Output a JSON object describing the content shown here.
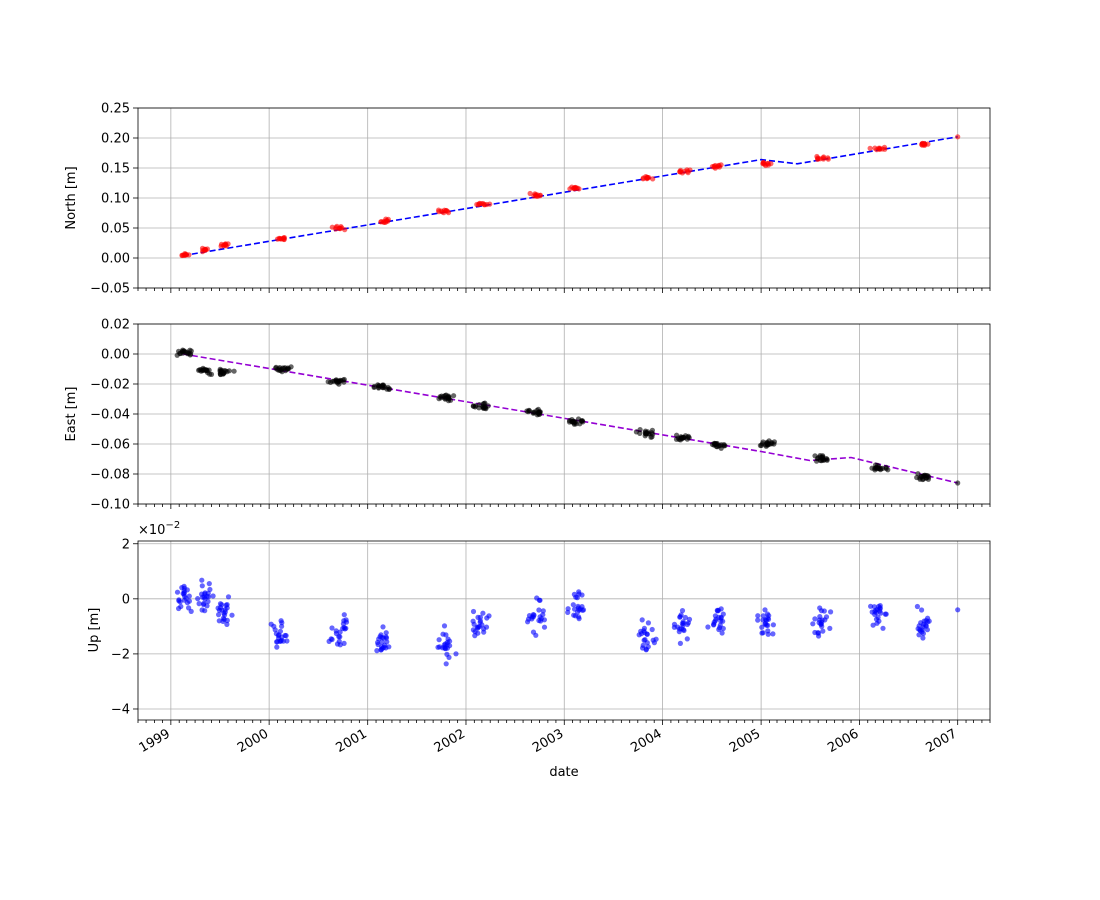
{
  "figure": {
    "xlabel": "date",
    "x_tick_labels": [
      "1999",
      "2000",
      "2001",
      "2002",
      "2003",
      "2004",
      "2005",
      "2006",
      "2007"
    ]
  },
  "chart_data": [
    {
      "type": "scatter",
      "panel": "north",
      "ylabel": "North [m]",
      "xlabel": "",
      "xlim": [
        "1998-09-01",
        "2007-05-01"
      ],
      "ylim": [
        -0.05,
        0.25
      ],
      "yticks": [
        -0.05,
        0.0,
        0.05,
        0.1,
        0.15,
        0.2,
        0.25
      ],
      "ytick_labels": [
        "−0.05",
        "0.00",
        "0.05",
        "0.10",
        "0.15",
        "0.20",
        "0.25"
      ],
      "grid": true,
      "colors": {
        "points": "#ff0000",
        "trend": "#0000ff"
      },
      "trend": {
        "style": "dashed",
        "x": [
          "1999-02-15",
          "2005-01-01",
          "2005-05-15",
          "2007-01-01"
        ],
        "y": [
          0.004,
          0.164,
          0.157,
          0.202
        ]
      },
      "clusters": [
        {
          "x": "1999-02-20",
          "y": 0.005
        },
        {
          "x": "1999-05-10",
          "y": 0.013
        },
        {
          "x": "1999-07-20",
          "y": 0.022
        },
        {
          "x": "2000-02-15",
          "y": 0.032
        },
        {
          "x": "2000-09-15",
          "y": 0.05
        },
        {
          "x": "2001-02-25",
          "y": 0.062
        },
        {
          "x": "2001-10-20",
          "y": 0.078
        },
        {
          "x": "2002-02-25",
          "y": 0.09
        },
        {
          "x": "2002-09-20",
          "y": 0.105
        },
        {
          "x": "2003-02-15",
          "y": 0.115
        },
        {
          "x": "2003-11-01",
          "y": 0.133
        },
        {
          "x": "2004-03-15",
          "y": 0.145
        },
        {
          "x": "2004-07-25",
          "y": 0.153
        },
        {
          "x": "2005-01-20",
          "y": 0.158
        },
        {
          "x": "2005-08-10",
          "y": 0.167
        },
        {
          "x": "2006-03-10",
          "y": 0.182
        },
        {
          "x": "2006-08-25",
          "y": 0.19
        },
        {
          "x": "2007-01-01",
          "y": 0.202
        }
      ]
    },
    {
      "type": "scatter",
      "panel": "east",
      "ylabel": "East [m]",
      "xlabel": "",
      "xlim": [
        "1998-09-01",
        "2007-05-01"
      ],
      "ylim": [
        -0.1,
        0.02
      ],
      "yticks": [
        -0.1,
        -0.08,
        -0.06,
        -0.04,
        -0.02,
        0.0,
        0.02
      ],
      "ytick_labels": [
        "−0.10",
        "−0.08",
        "−0.06",
        "−0.04",
        "−0.02",
        "0.00",
        "0.02"
      ],
      "grid": true,
      "colors": {
        "points": "#000000",
        "trend": "#9400d3"
      },
      "trend": {
        "style": "dashed",
        "x": [
          "1999-02-15",
          "2005-01-01",
          "2005-07-01",
          "2005-12-01",
          "2007-01-01"
        ],
        "y": [
          0.0,
          -0.065,
          -0.071,
          -0.069,
          -0.086
        ]
      },
      "clusters": [
        {
          "x": "1999-02-20",
          "y": 0.001
        },
        {
          "x": "1999-05-10",
          "y": -0.011
        },
        {
          "x": "1999-07-20",
          "y": -0.012
        },
        {
          "x": "2000-02-15",
          "y": -0.01
        },
        {
          "x": "2000-09-15",
          "y": -0.018
        },
        {
          "x": "2001-02-25",
          "y": -0.022
        },
        {
          "x": "2001-10-20",
          "y": -0.029
        },
        {
          "x": "2002-02-25",
          "y": -0.035
        },
        {
          "x": "2002-09-20",
          "y": -0.039
        },
        {
          "x": "2003-02-15",
          "y": -0.045
        },
        {
          "x": "2003-11-01",
          "y": -0.053
        },
        {
          "x": "2004-03-15",
          "y": -0.056
        },
        {
          "x": "2004-07-25",
          "y": -0.061
        },
        {
          "x": "2005-01-20",
          "y": -0.06
        },
        {
          "x": "2005-08-10",
          "y": -0.07
        },
        {
          "x": "2006-03-10",
          "y": -0.076
        },
        {
          "x": "2006-08-25",
          "y": -0.082
        },
        {
          "x": "2007-01-01",
          "y": -0.086
        }
      ]
    },
    {
      "type": "scatter",
      "panel": "up",
      "ylabel": "Up [m]",
      "xlabel": "date",
      "offset_label": "×10",
      "offset_exponent": "−2",
      "xlim": [
        "1998-09-01",
        "2007-05-01"
      ],
      "ylim": [
        -4.4,
        2.1
      ],
      "yticks": [
        -4,
        -2,
        0,
        2
      ],
      "ytick_labels": [
        "−4",
        "−2",
        "0",
        "2"
      ],
      "grid": true,
      "colors": {
        "points": "#0000ff"
      },
      "clusters": [
        {
          "x": "1999-02-20",
          "y": 0.0
        },
        {
          "x": "1999-05-10",
          "y": 0.1
        },
        {
          "x": "1999-07-20",
          "y": -0.5
        },
        {
          "x": "2000-02-15",
          "y": -1.4
        },
        {
          "x": "2000-09-15",
          "y": -1.2
        },
        {
          "x": "2001-02-25",
          "y": -1.6
        },
        {
          "x": "2001-10-20",
          "y": -1.7
        },
        {
          "x": "2002-02-25",
          "y": -0.9
        },
        {
          "x": "2002-09-20",
          "y": -0.6
        },
        {
          "x": "2003-02-15",
          "y": -0.2
        },
        {
          "x": "2003-11-01",
          "y": -1.3
        },
        {
          "x": "2004-03-15",
          "y": -0.9
        },
        {
          "x": "2004-07-25",
          "y": -0.8
        },
        {
          "x": "2005-01-20",
          "y": -0.9
        },
        {
          "x": "2005-08-10",
          "y": -0.8
        },
        {
          "x": "2006-03-10",
          "y": -0.6
        },
        {
          "x": "2006-08-25",
          "y": -0.9
        },
        {
          "x": "2007-01-01",
          "y": -0.4
        }
      ]
    }
  ]
}
